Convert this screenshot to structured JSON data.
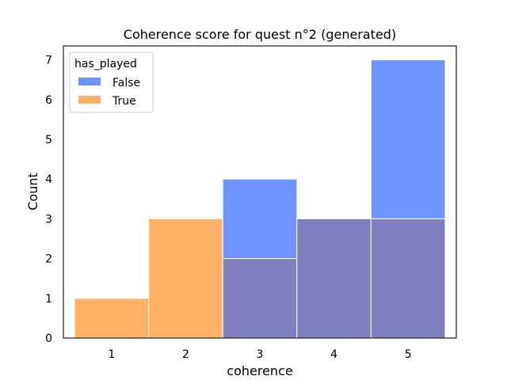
{
  "chart_data": {
    "type": "bar",
    "title": "Coherence score for quest n°2 (generated)",
    "xlabel": "coherence",
    "ylabel": "Count",
    "categories": [
      "1",
      "2",
      "3",
      "4",
      "5"
    ],
    "series": [
      {
        "name": "False",
        "values": [
          0,
          0,
          4,
          3,
          7
        ],
        "color": "#6f94ff"
      },
      {
        "name": "True",
        "values": [
          1,
          3,
          2,
          3,
          3
        ],
        "color": "#ffb266"
      }
    ],
    "overlap_color": "#7f7fbf",
    "xlim": [
      0.35,
      5.65
    ],
    "ylim": [
      0,
      7.35
    ],
    "yticks": [
      0,
      1,
      2,
      3,
      4,
      5,
      6,
      7
    ],
    "legend": {
      "title": "has_played",
      "position": "top-left"
    },
    "grid": false
  }
}
